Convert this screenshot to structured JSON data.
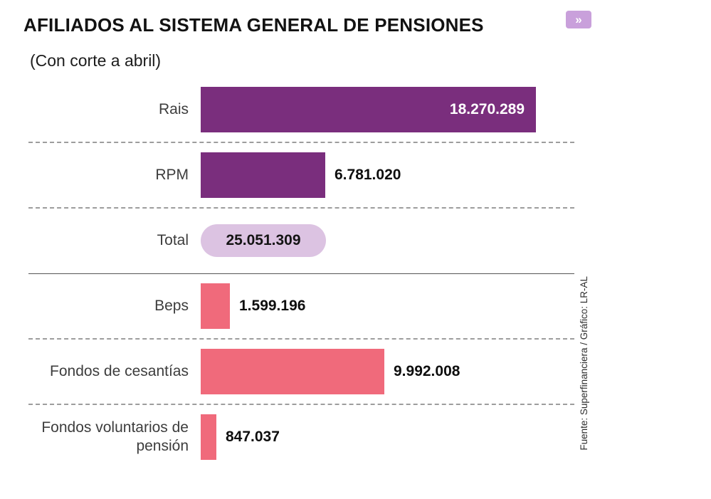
{
  "header": {
    "title": "AFILIADOS AL SISTEMA GENERAL DE PENSIONES",
    "subtitle": "(Con corte a abril)",
    "badge_icon": "»"
  },
  "source": "Fuente: Superfinanciera / Gráfico: LR-AL",
  "colors": {
    "purple": "#7A2E7D",
    "pink": "#F06A7B",
    "pill_bg": "#DCC3E2",
    "badge": "#C9A0DB",
    "sep": "#9D9D9D"
  },
  "chart_data": {
    "type": "bar",
    "orientation": "horizontal",
    "title": "AFILIADOS AL SISTEMA GENERAL DE PENSIONES",
    "subtitle": "(Con corte a abril)",
    "max_value": 18270289,
    "legend": "none",
    "grid": "off",
    "rows": [
      {
        "id": "rais",
        "label": "Rais",
        "value": 18270289,
        "display": "18.270.289",
        "style": "purple",
        "value_position": "inside",
        "separator_after": "dashed"
      },
      {
        "id": "rpm",
        "label": "RPM",
        "value": 6781020,
        "display": "6.781.020",
        "style": "purple",
        "value_position": "outside",
        "separator_after": "dashed"
      },
      {
        "id": "total",
        "label": "Total",
        "value": 25051309,
        "display": "25.051.309",
        "style": "pill",
        "value_position": "pill",
        "separator_after": "solid"
      },
      {
        "id": "beps",
        "label": "Beps",
        "value": 1599196,
        "display": "1.599.196",
        "style": "pink",
        "value_position": "outside",
        "separator_after": "dashed"
      },
      {
        "id": "cesantias",
        "label": "Fondos de cesantías",
        "value": 9992008,
        "display": "9.992.008",
        "style": "pink",
        "value_position": "outside",
        "separator_after": "dashed"
      },
      {
        "id": "voluntarios",
        "label": "Fondos voluntarios de pensión",
        "value": 847037,
        "display": "847.037",
        "style": "pink",
        "value_position": "outside",
        "separator_after": "none"
      }
    ]
  }
}
